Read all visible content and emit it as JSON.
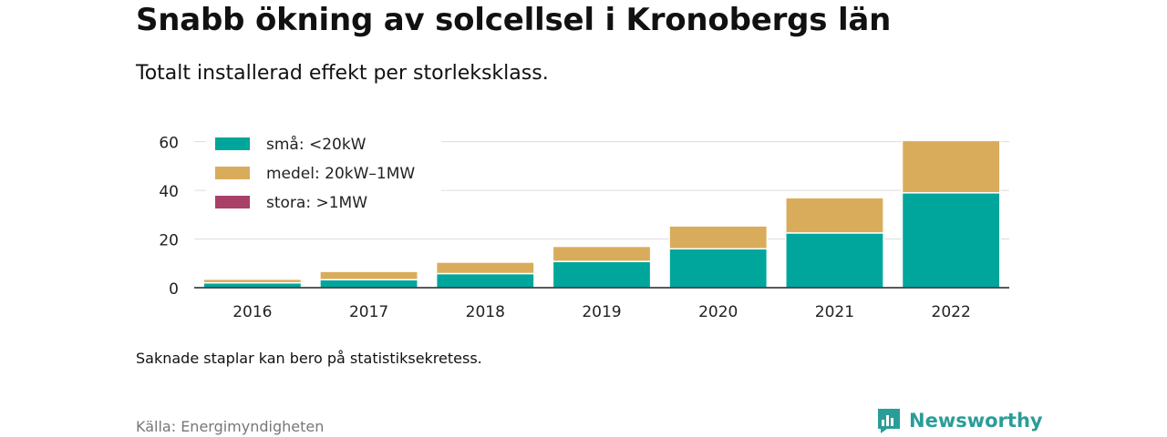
{
  "header": {
    "title": "Snabb ökning av solcellsel i Kronobergs län",
    "subtitle": "Totalt installerad effekt per storleksklass."
  },
  "footer": {
    "note": "Saknade staplar kan bero på statistiksekretess.",
    "source": "Källa: Energimyndigheten",
    "brand": "Newsworthy"
  },
  "colors": {
    "small": "#00a69c",
    "medium": "#d9ac5b",
    "large": "#a84068",
    "brand": "#2a9d98",
    "grid": "#dddddd",
    "axis": "#222222"
  },
  "chart_data": {
    "type": "bar",
    "stacked": true,
    "categories": [
      "2016",
      "2017",
      "2018",
      "2019",
      "2020",
      "2021",
      "2022"
    ],
    "series": [
      {
        "name": "små: <20kW",
        "color": "#00a69c",
        "values": [
          2,
          3.3,
          5.8,
          10.8,
          16,
          22.5,
          39
        ]
      },
      {
        "name": "medel: 20kW–1MW",
        "color": "#d9ac5b",
        "values": [
          1.5,
          3.4,
          4.7,
          6.2,
          9.4,
          14.5,
          21.5
        ]
      },
      {
        "name": "stora: >1MW",
        "color": "#a84068",
        "values": [
          0,
          0,
          0,
          0,
          0,
          0,
          0
        ]
      }
    ],
    "yticks": [
      0,
      20,
      40,
      60
    ],
    "ylim": [
      0,
      61
    ],
    "xlabel": "",
    "ylabel": "",
    "grid": true,
    "legend_position": "top-left"
  }
}
